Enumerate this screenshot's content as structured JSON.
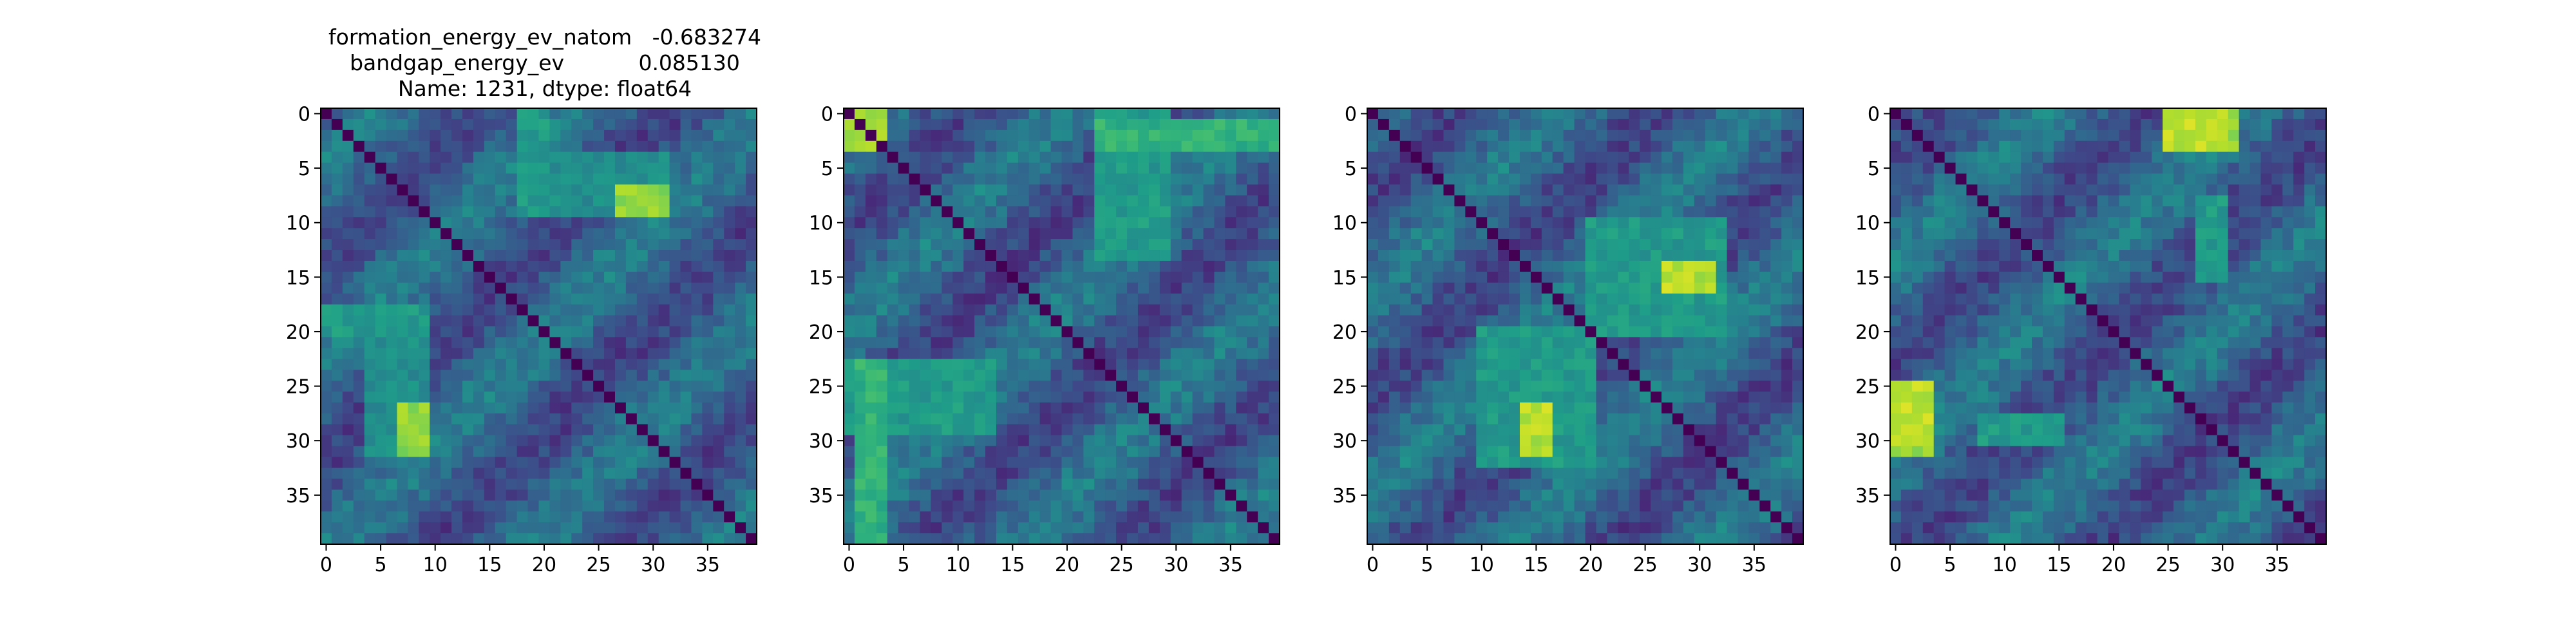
{
  "title": {
    "line1": "formation_energy_ev_natom   -0.683274",
    "line2": "bandgap_energy_ev           0.085130",
    "line3": "Name: 1231, dtype: float64"
  },
  "chart_data": [
    {
      "type": "heatmap",
      "colormap": "viridis",
      "matrix_size": 40,
      "xticks": [
        "0",
        "5",
        "10",
        "15",
        "20",
        "25",
        "30",
        "35"
      ],
      "yticks": [
        "0",
        "5",
        "10",
        "15",
        "20",
        "25",
        "30",
        "35"
      ],
      "description": "Symmetric 40x40 pairwise distance matrix; zero diagonal; brightest around rows 26-31 x cols 7-9 and rows 7-9 x cols 27-31",
      "hot": [
        {
          "r": [
            27,
            31
          ],
          "c": [
            7,
            9
          ],
          "v": 0.9
        },
        {
          "r": [
            18,
            20
          ],
          "c": [
            0,
            9
          ],
          "v": 0.6
        },
        {
          "r": [
            4,
            9
          ],
          "c": [
            18,
            31
          ],
          "v": 0.55
        }
      ]
    },
    {
      "type": "heatmap",
      "colormap": "viridis",
      "matrix_size": 40,
      "xticks": [
        "0",
        "5",
        "10",
        "15",
        "20",
        "25",
        "30",
        "35"
      ],
      "yticks": [
        "0",
        "5",
        "10",
        "15",
        "20",
        "25",
        "30",
        "35"
      ],
      "description": "Symmetric 40x40 pairwise distance matrix; bright bands along rows/cols 1-3 and 23-29",
      "hot": [
        {
          "r": [
            1,
            3
          ],
          "c": [
            0,
            3
          ],
          "v": 0.95
        },
        {
          "r": [
            1,
            3
          ],
          "c": [
            23,
            39
          ],
          "v": 0.7
        },
        {
          "r": [
            23,
            29
          ],
          "c": [
            0,
            13
          ],
          "v": 0.6
        }
      ]
    },
    {
      "type": "heatmap",
      "colormap": "viridis",
      "matrix_size": 40,
      "xticks": [
        "0",
        "5",
        "10",
        "15",
        "20",
        "25",
        "30",
        "35"
      ],
      "yticks": [
        "0",
        "5",
        "10",
        "15",
        "20",
        "25",
        "30",
        "35"
      ],
      "description": "Symmetric 40x40 pairwise distance matrix; two blocks 0-19 and 20-39 with brighter off-diagonal region rows 20-31 x cols 10-19",
      "hot": [
        {
          "r": [
            27,
            31
          ],
          "c": [
            14,
            16
          ],
          "v": 0.95
        },
        {
          "r": [
            10,
            20
          ],
          "c": [
            20,
            32
          ],
          "v": 0.6
        }
      ]
    },
    {
      "type": "heatmap",
      "colormap": "viridis",
      "matrix_size": 40,
      "xticks": [
        "0",
        "5",
        "10",
        "15",
        "20",
        "25",
        "30",
        "35"
      ],
      "yticks": [
        "0",
        "5",
        "10",
        "15",
        "20",
        "25",
        "30",
        "35"
      ],
      "description": "Symmetric 40x40 pairwise distance matrix; brightest around rows 0-3 x cols 25-30 and rows 27-31 x cols 0-3",
      "hot": [
        {
          "r": [
            0,
            3
          ],
          "c": [
            25,
            30
          ],
          "v": 0.95
        },
        {
          "r": [
            27,
            31
          ],
          "c": [
            0,
            3
          ],
          "v": 0.9
        },
        {
          "r": [
            28,
            30
          ],
          "c": [
            8,
            15
          ],
          "v": 0.6
        }
      ]
    }
  ]
}
